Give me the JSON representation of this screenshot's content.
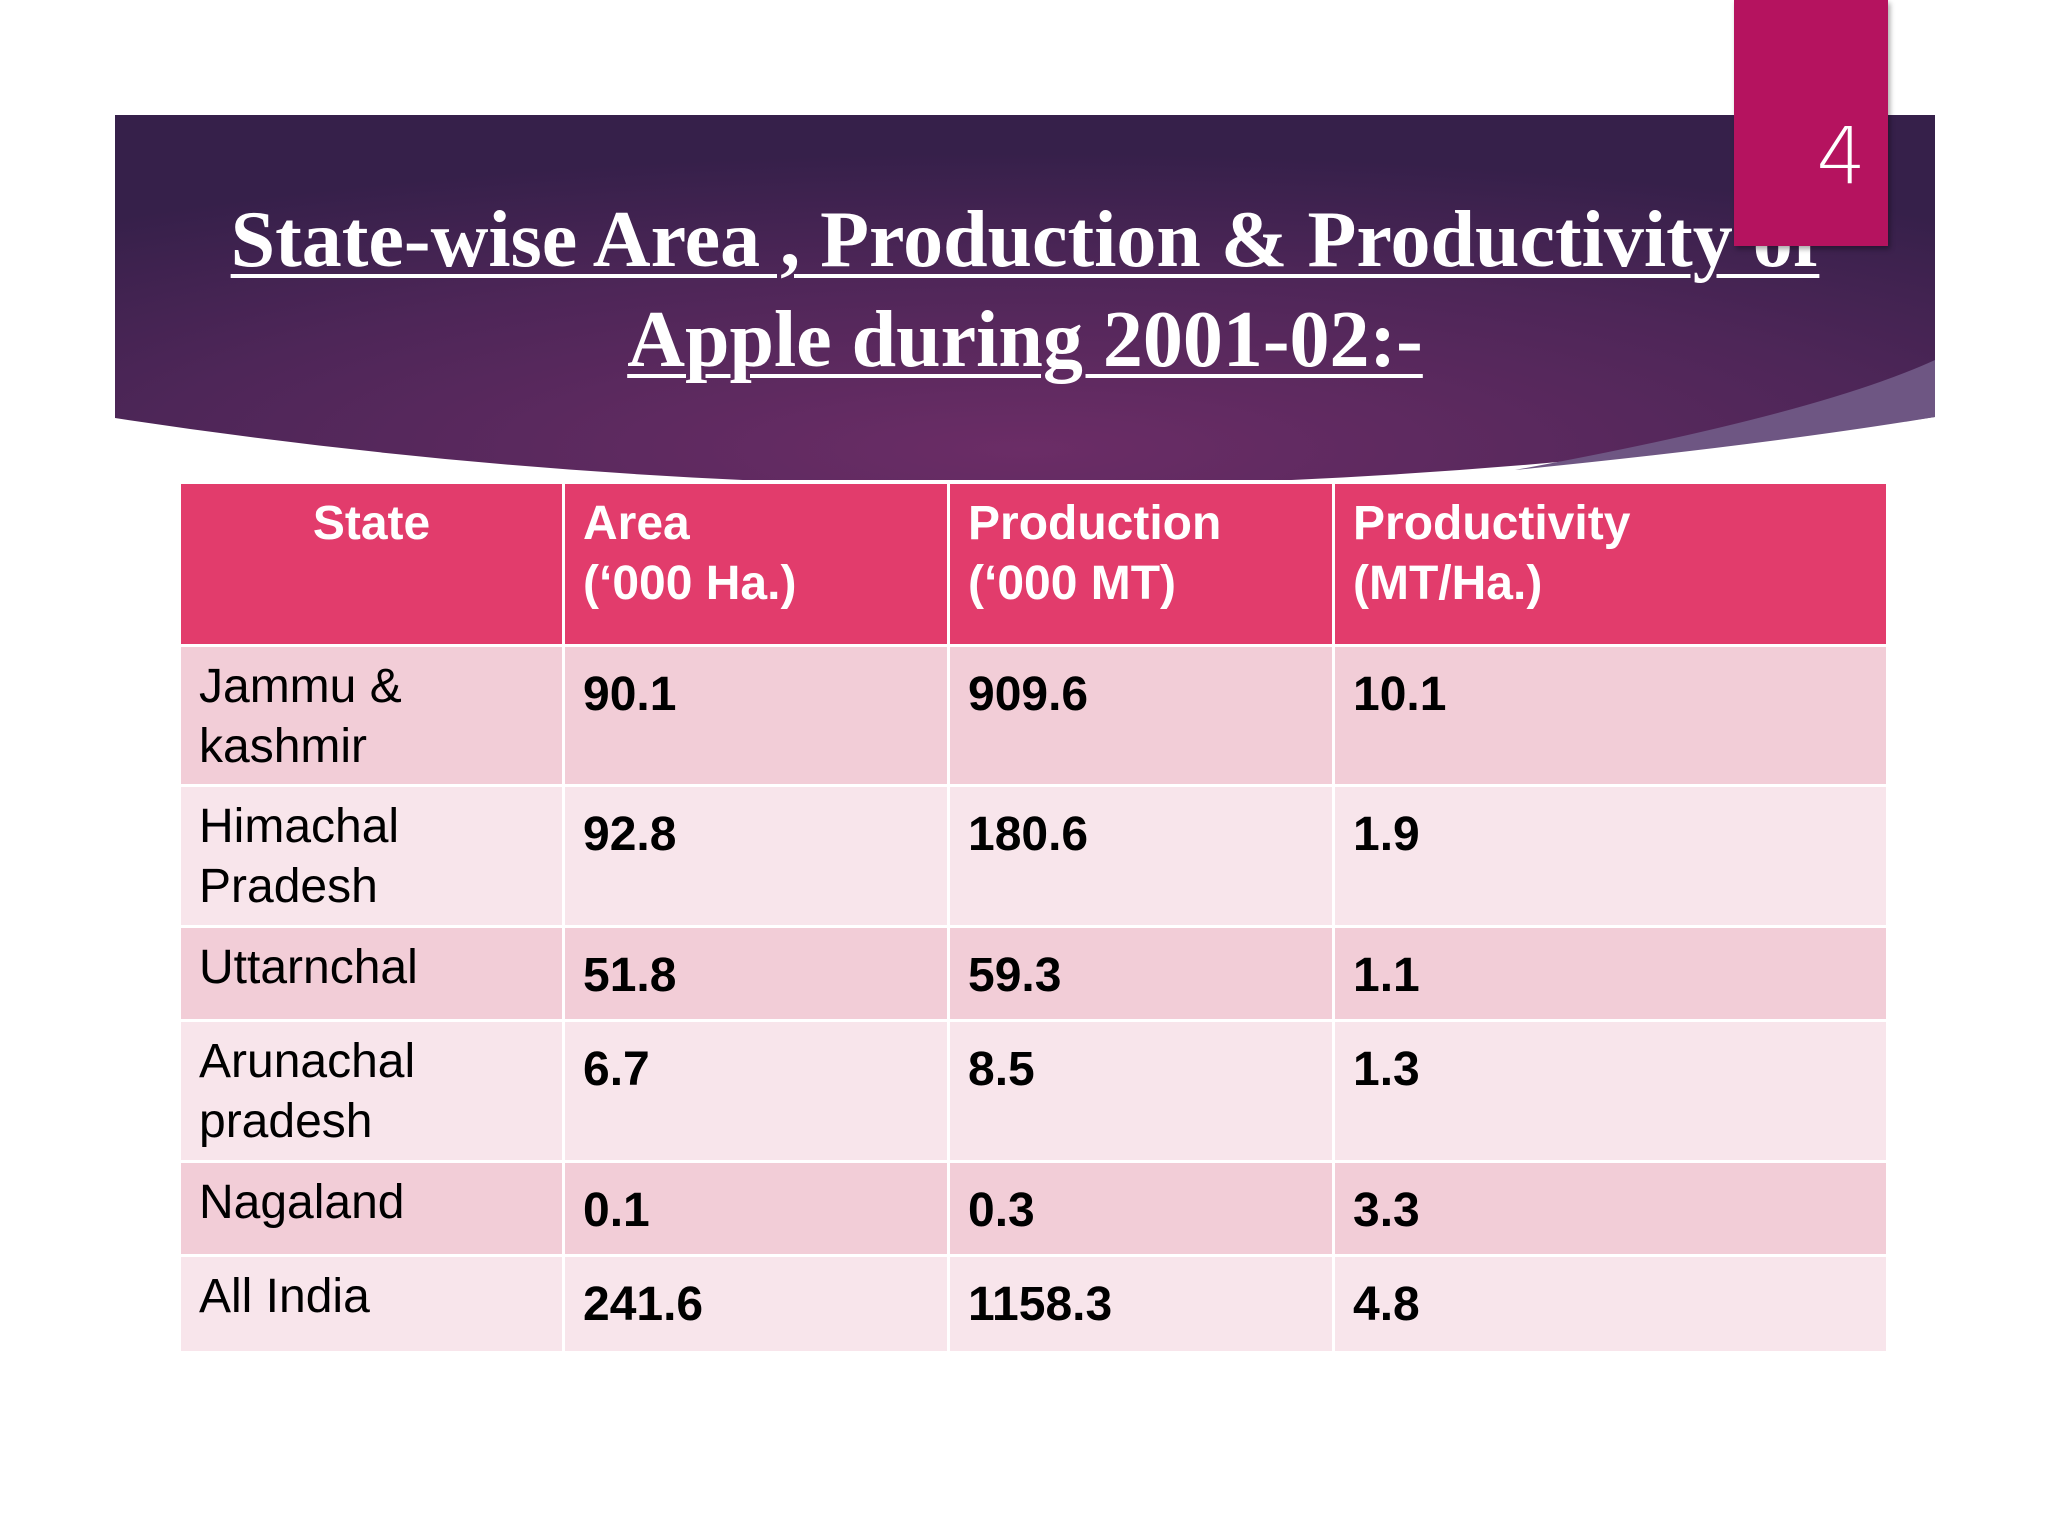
{
  "slide": {
    "number": "4",
    "title_line1": "State-wise Area , Production & Productivity of",
    "title_line2": "Apple during 2001-02:-"
  },
  "table": {
    "headers": [
      {
        "line1": "State",
        "line2": ""
      },
      {
        "line1": "Area",
        "line2": "(‘000 Ha.)"
      },
      {
        "line1": "Production",
        "line2": "(‘000 MT)"
      },
      {
        "line1": "Productivity",
        "line2": "(MT/Ha.)"
      }
    ],
    "rows": [
      {
        "state_line1": "Jammu &",
        "state_line2": "kashmir",
        "area": "90.1",
        "production": "909.6",
        "productivity": "10.1"
      },
      {
        "state_line1": "Himachal",
        "state_line2": "Pradesh",
        "area": "92.8",
        "production": "180.6",
        "productivity": "1.9"
      },
      {
        "state_line1": "Uttarnchal",
        "state_line2": "",
        "area": "51.8",
        "production": "59.3",
        "productivity": "1.1"
      },
      {
        "state_line1": "Arunachal",
        "state_line2": "pradesh",
        "area": "6.7",
        "production": "8.5",
        "productivity": "1.3"
      },
      {
        "state_line1": "Nagaland",
        "state_line2": "",
        "area": "0.1",
        "production": "0.3",
        "productivity": "3.3"
      },
      {
        "state_line1": "All India",
        "state_line2": "",
        "area": "241.6",
        "production": "1158.3",
        "productivity": "4.8"
      }
    ]
  },
  "colors": {
    "header": "#e23c6c",
    "row_odd": "#f2cdd7",
    "row_even": "#f8e5eb",
    "banner": "#4a2458",
    "slide_number_box": "#b5135f"
  }
}
